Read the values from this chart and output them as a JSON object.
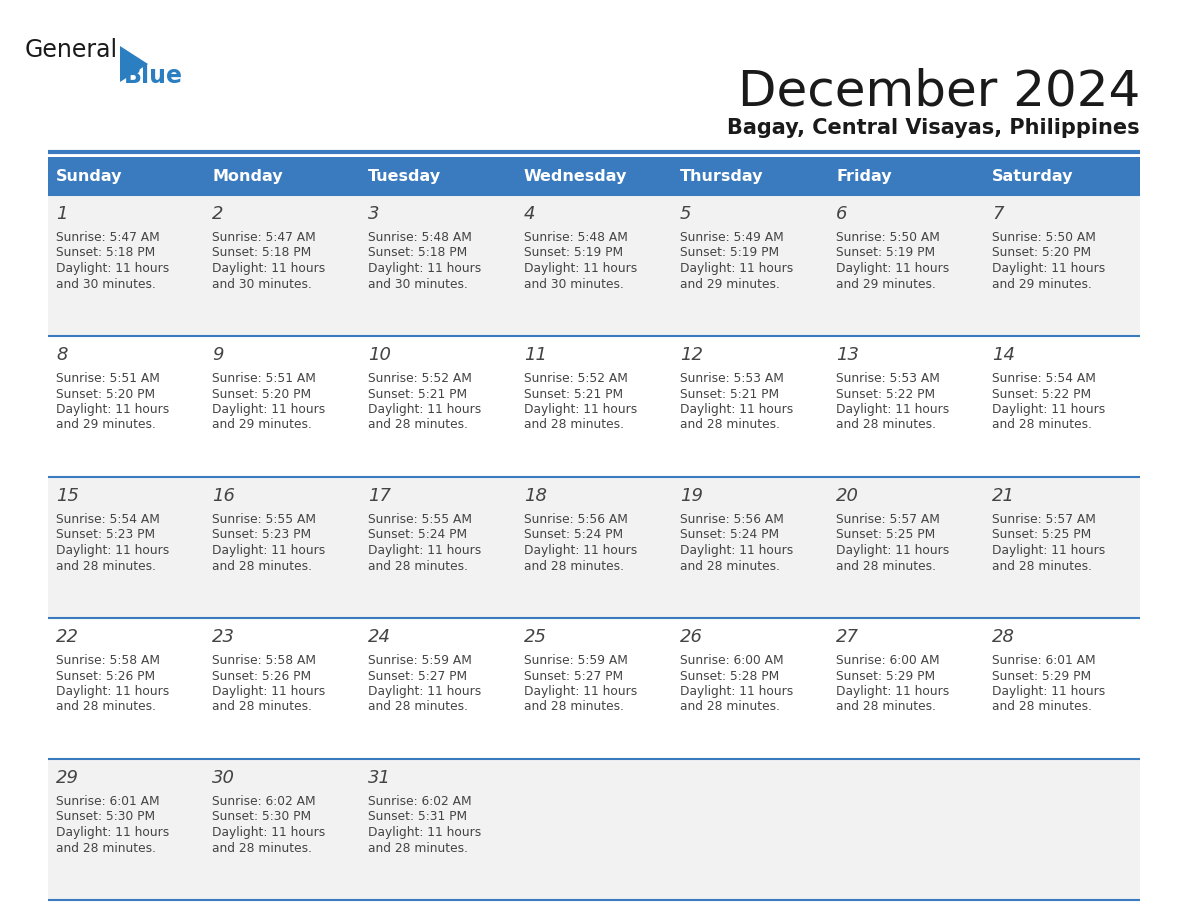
{
  "title": "December 2024",
  "subtitle": "Bagay, Central Visayas, Philippines",
  "header_bg_color": "#3a7bbf",
  "header_text_color": "#ffffff",
  "cell_bg_even": "#f2f2f2",
  "cell_bg_odd": "#ffffff",
  "border_color": "#3a7bbf",
  "row_line_color": "#3a7bbf",
  "text_color": "#444444",
  "days_of_week": [
    "Sunday",
    "Monday",
    "Tuesday",
    "Wednesday",
    "Thursday",
    "Friday",
    "Saturday"
  ],
  "weeks": [
    [
      {
        "day": "1",
        "sunrise": "5:47 AM",
        "sunset": "5:18 PM",
        "daylight_h": "11 hours",
        "daylight_m": "and 30 minutes."
      },
      {
        "day": "2",
        "sunrise": "5:47 AM",
        "sunset": "5:18 PM",
        "daylight_h": "11 hours",
        "daylight_m": "and 30 minutes."
      },
      {
        "day": "3",
        "sunrise": "5:48 AM",
        "sunset": "5:18 PM",
        "daylight_h": "11 hours",
        "daylight_m": "and 30 minutes."
      },
      {
        "day": "4",
        "sunrise": "5:48 AM",
        "sunset": "5:19 PM",
        "daylight_h": "11 hours",
        "daylight_m": "and 30 minutes."
      },
      {
        "day": "5",
        "sunrise": "5:49 AM",
        "sunset": "5:19 PM",
        "daylight_h": "11 hours",
        "daylight_m": "and 29 minutes."
      },
      {
        "day": "6",
        "sunrise": "5:50 AM",
        "sunset": "5:19 PM",
        "daylight_h": "11 hours",
        "daylight_m": "and 29 minutes."
      },
      {
        "day": "7",
        "sunrise": "5:50 AM",
        "sunset": "5:20 PM",
        "daylight_h": "11 hours",
        "daylight_m": "and 29 minutes."
      }
    ],
    [
      {
        "day": "8",
        "sunrise": "5:51 AM",
        "sunset": "5:20 PM",
        "daylight_h": "11 hours",
        "daylight_m": "and 29 minutes."
      },
      {
        "day": "9",
        "sunrise": "5:51 AM",
        "sunset": "5:20 PM",
        "daylight_h": "11 hours",
        "daylight_m": "and 29 minutes."
      },
      {
        "day": "10",
        "sunrise": "5:52 AM",
        "sunset": "5:21 PM",
        "daylight_h": "11 hours",
        "daylight_m": "and 28 minutes."
      },
      {
        "day": "11",
        "sunrise": "5:52 AM",
        "sunset": "5:21 PM",
        "daylight_h": "11 hours",
        "daylight_m": "and 28 minutes."
      },
      {
        "day": "12",
        "sunrise": "5:53 AM",
        "sunset": "5:21 PM",
        "daylight_h": "11 hours",
        "daylight_m": "and 28 minutes."
      },
      {
        "day": "13",
        "sunrise": "5:53 AM",
        "sunset": "5:22 PM",
        "daylight_h": "11 hours",
        "daylight_m": "and 28 minutes."
      },
      {
        "day": "14",
        "sunrise": "5:54 AM",
        "sunset": "5:22 PM",
        "daylight_h": "11 hours",
        "daylight_m": "and 28 minutes."
      }
    ],
    [
      {
        "day": "15",
        "sunrise": "5:54 AM",
        "sunset": "5:23 PM",
        "daylight_h": "11 hours",
        "daylight_m": "and 28 minutes."
      },
      {
        "day": "16",
        "sunrise": "5:55 AM",
        "sunset": "5:23 PM",
        "daylight_h": "11 hours",
        "daylight_m": "and 28 minutes."
      },
      {
        "day": "17",
        "sunrise": "5:55 AM",
        "sunset": "5:24 PM",
        "daylight_h": "11 hours",
        "daylight_m": "and 28 minutes."
      },
      {
        "day": "18",
        "sunrise": "5:56 AM",
        "sunset": "5:24 PM",
        "daylight_h": "11 hours",
        "daylight_m": "and 28 minutes."
      },
      {
        "day": "19",
        "sunrise": "5:56 AM",
        "sunset": "5:24 PM",
        "daylight_h": "11 hours",
        "daylight_m": "and 28 minutes."
      },
      {
        "day": "20",
        "sunrise": "5:57 AM",
        "sunset": "5:25 PM",
        "daylight_h": "11 hours",
        "daylight_m": "and 28 minutes."
      },
      {
        "day": "21",
        "sunrise": "5:57 AM",
        "sunset": "5:25 PM",
        "daylight_h": "11 hours",
        "daylight_m": "and 28 minutes."
      }
    ],
    [
      {
        "day": "22",
        "sunrise": "5:58 AM",
        "sunset": "5:26 PM",
        "daylight_h": "11 hours",
        "daylight_m": "and 28 minutes."
      },
      {
        "day": "23",
        "sunrise": "5:58 AM",
        "sunset": "5:26 PM",
        "daylight_h": "11 hours",
        "daylight_m": "and 28 minutes."
      },
      {
        "day": "24",
        "sunrise": "5:59 AM",
        "sunset": "5:27 PM",
        "daylight_h": "11 hours",
        "daylight_m": "and 28 minutes."
      },
      {
        "day": "25",
        "sunrise": "5:59 AM",
        "sunset": "5:27 PM",
        "daylight_h": "11 hours",
        "daylight_m": "and 28 minutes."
      },
      {
        "day": "26",
        "sunrise": "6:00 AM",
        "sunset": "5:28 PM",
        "daylight_h": "11 hours",
        "daylight_m": "and 28 minutes."
      },
      {
        "day": "27",
        "sunrise": "6:00 AM",
        "sunset": "5:29 PM",
        "daylight_h": "11 hours",
        "daylight_m": "and 28 minutes."
      },
      {
        "day": "28",
        "sunrise": "6:01 AM",
        "sunset": "5:29 PM",
        "daylight_h": "11 hours",
        "daylight_m": "and 28 minutes."
      }
    ],
    [
      {
        "day": "29",
        "sunrise": "6:01 AM",
        "sunset": "5:30 PM",
        "daylight_h": "11 hours",
        "daylight_m": "and 28 minutes."
      },
      {
        "day": "30",
        "sunrise": "6:02 AM",
        "sunset": "5:30 PM",
        "daylight_h": "11 hours",
        "daylight_m": "and 28 minutes."
      },
      {
        "day": "31",
        "sunrise": "6:02 AM",
        "sunset": "5:31 PM",
        "daylight_h": "11 hours",
        "daylight_m": "and 28 minutes."
      },
      null,
      null,
      null,
      null
    ]
  ]
}
